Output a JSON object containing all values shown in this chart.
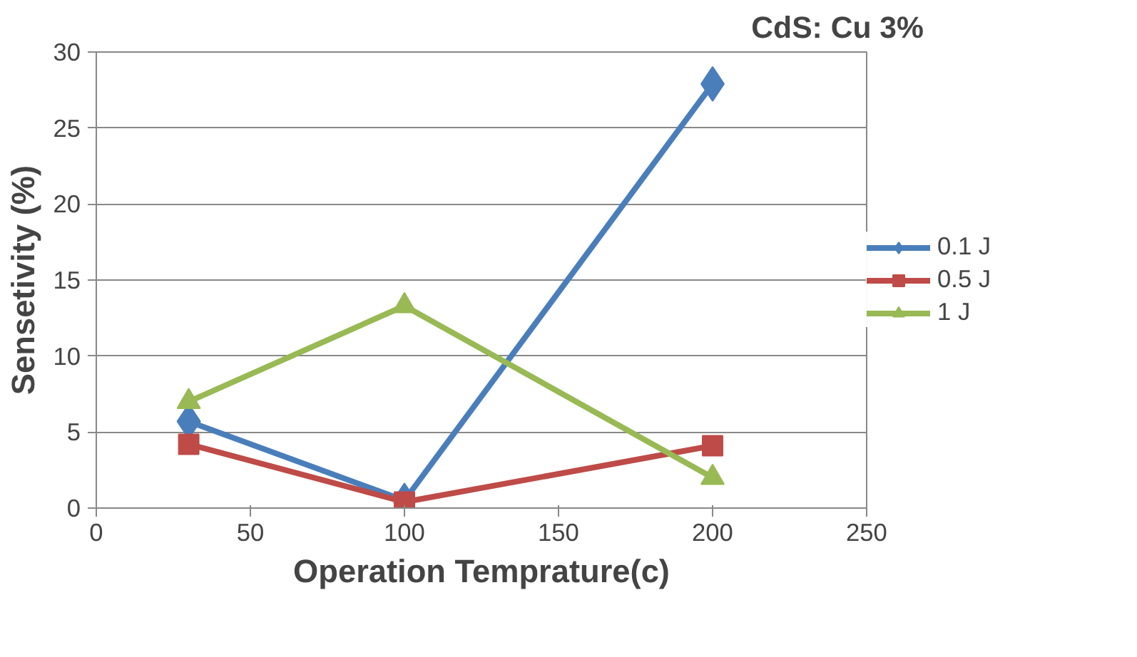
{
  "chart_data": {
    "type": "line",
    "xlabel": "Operation Temprature(c)",
    "ylabel": "Sensetivity (%)",
    "annotations": [
      "CdS: Cu 3%"
    ],
    "x": [
      30,
      100,
      200
    ],
    "series": [
      {
        "name": "0.1 J",
        "color": "#4a7ebb",
        "values": [
          5.7,
          0.5,
          27.9
        ],
        "marker": "diamond"
      },
      {
        "name": "0.5 J",
        "color": "#be4b48",
        "values": [
          4.2,
          0.4,
          4.1
        ],
        "marker": "square"
      },
      {
        "name": "1 J",
        "color": "#98b954",
        "values": [
          7.0,
          13.3,
          2.0
        ],
        "marker": "triangle"
      }
    ],
    "xlim": [
      0,
      250
    ],
    "xticks": [
      0,
      50,
      100,
      150,
      200,
      250
    ],
    "ylim": [
      0,
      30
    ],
    "yticks": [
      0,
      5,
      10,
      15,
      20,
      25,
      30
    ],
    "grid": "y",
    "legend": "right"
  }
}
